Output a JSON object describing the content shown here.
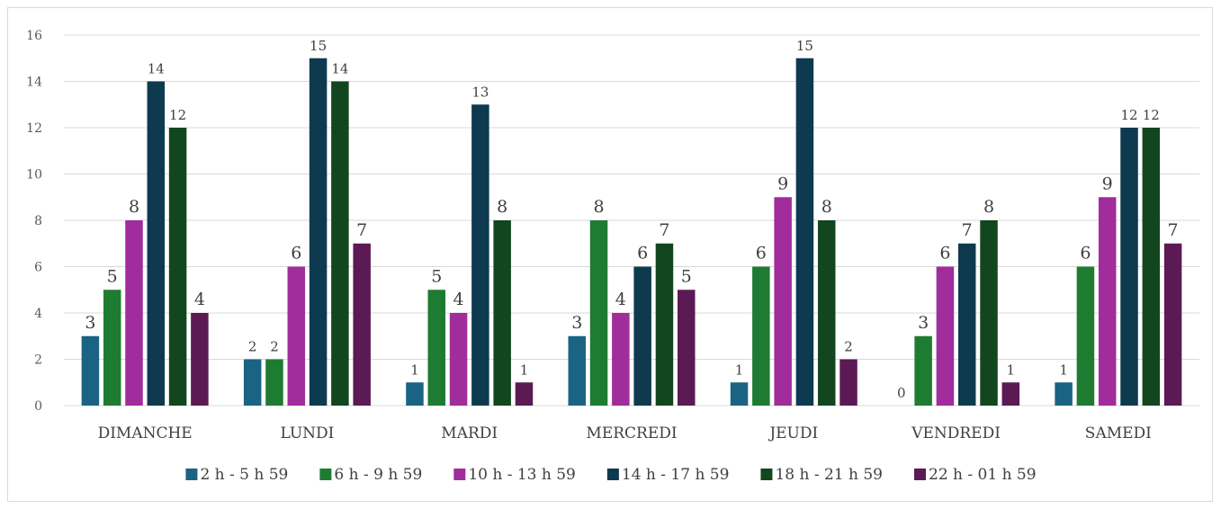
{
  "chart_data": {
    "type": "bar",
    "categories": [
      "DIMANCHE",
      "LUNDI",
      "MARDI",
      "MERCREDI",
      "JEUDI",
      "VENDREDI",
      "SAMEDI"
    ],
    "series": [
      {
        "name": "2 h - 5 h 59",
        "color": "#1a6383",
        "values": [
          3,
          2,
          1,
          3,
          1,
          0,
          1
        ]
      },
      {
        "name": "6 h - 9 h 59",
        "color": "#1e7b32",
        "values": [
          5,
          2,
          5,
          8,
          6,
          3,
          6
        ]
      },
      {
        "name": "10 h - 13 h 59",
        "color": "#a12c9b",
        "values": [
          8,
          6,
          4,
          4,
          9,
          6,
          9
        ]
      },
      {
        "name": "14 h - 17 h 59",
        "color": "#0e3a4f",
        "values": [
          14,
          15,
          13,
          6,
          15,
          7,
          12
        ]
      },
      {
        "name": "18 h - 21 h 59",
        "color": "#12461f",
        "values": [
          12,
          14,
          8,
          7,
          8,
          8,
          12
        ]
      },
      {
        "name": "22 h - 01 h 59",
        "color": "#5c1a55",
        "values": [
          4,
          7,
          1,
          5,
          2,
          1,
          7
        ]
      }
    ],
    "ylim": [
      0,
      16
    ],
    "yticks": [
      0,
      2,
      4,
      6,
      8,
      10,
      12,
      14,
      16
    ],
    "grid": true,
    "legend_position": "bottom"
  }
}
